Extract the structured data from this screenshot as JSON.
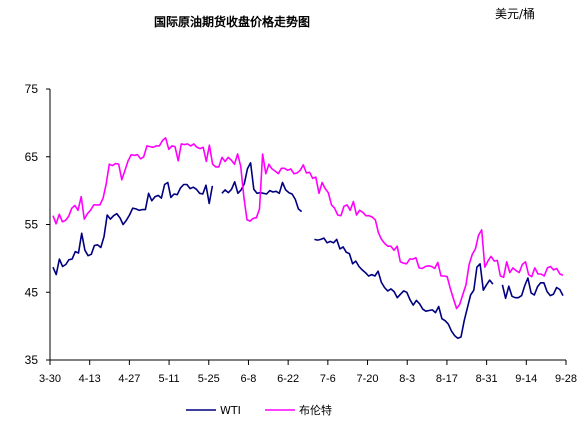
{
  "chart_data": {
    "type": "line",
    "title": "国际原油期货收盘价格走势图",
    "unit_label": "美元/桶",
    "xlabel": "",
    "ylabel": "",
    "ylim": [
      35,
      75
    ],
    "y_ticks": [
      35,
      45,
      55,
      65,
      75
    ],
    "x_tick_labels": [
      "3-30",
      "4-13",
      "4-27",
      "5-11",
      "5-25",
      "6-8",
      "6-22",
      "7-6",
      "7-20",
      "8-3",
      "8-17",
      "8-31",
      "9-14",
      "9-28"
    ],
    "grid": false,
    "legend_position": "bottom",
    "series": [
      {
        "name": "WTI",
        "color": "#000080",
        "values": [
          48.7,
          47.6,
          49.9,
          48.8,
          49.1,
          49.8,
          49.9,
          51.0,
          50.8,
          53.7,
          51.2,
          50.4,
          50.6,
          51.9,
          52.0,
          51.6,
          53.2,
          56.4,
          55.8,
          56.3,
          56.6,
          56.0,
          55.0,
          55.6,
          56.4,
          57.4,
          57.3,
          57.1,
          57.2,
          57.2,
          59.6,
          58.5,
          59.1,
          59.3,
          58.9,
          60.9,
          61.2,
          59.0,
          59.5,
          59.4,
          60.4,
          60.9,
          60.9,
          60.3,
          60.5,
          60.2,
          59.6,
          59.5,
          60.8,
          58.1,
          60.7,
          null,
          null,
          59.6,
          60.1,
          59.7,
          60.2,
          61.3,
          59.6,
          60.1,
          61.0,
          63.2,
          64.1,
          60.2,
          59.6,
          59.7,
          59.6,
          59.5,
          60.0,
          59.8,
          59.9,
          59.6,
          61.2,
          60.1,
          59.7,
          59.5,
          58.7,
          57.3,
          56.9,
          null,
          null,
          null,
          52.8,
          52.7,
          52.8,
          53.0,
          52.3,
          52.5,
          52.3,
          52.8,
          51.4,
          51.7,
          50.9,
          50.7,
          49.2,
          49.6,
          48.8,
          48.3,
          47.9,
          47.4,
          47.6,
          47.4,
          48.1,
          46.5,
          45.7,
          45.2,
          45.5,
          45.1,
          44.2,
          44.7,
          45.2,
          45.0,
          43.9,
          43.1,
          43.8,
          43.3,
          42.5,
          42.2,
          42.3,
          42.4,
          42.0,
          42.9,
          41.1,
          40.8,
          40.3,
          39.3,
          38.6,
          38.2,
          38.4,
          40.8,
          42.7,
          44.6,
          45.3,
          48.7,
          49.2,
          45.3,
          46.1,
          46.8,
          46.2,
          null,
          null,
          46.1,
          44.1,
          45.9,
          44.4,
          44.2,
          44.2,
          44.5,
          46.0,
          47.1,
          44.9,
          44.6,
          45.8,
          46.4,
          46.4,
          45.1,
          44.5,
          44.7,
          45.7,
          45.4,
          44.5
        ]
      },
      {
        "name": "布伦特",
        "color": "#ff00ff",
        "values": [
          56.3,
          55.1,
          56.5,
          55.4,
          55.6,
          56.2,
          57.4,
          57.8,
          57.1,
          59.1,
          55.8,
          56.6,
          57.1,
          57.9,
          57.9,
          57.9,
          58.9,
          61.0,
          63.9,
          63.7,
          64.0,
          63.9,
          61.6,
          63.0,
          64.4,
          65.3,
          65.2,
          65.3,
          64.7,
          65.0,
          66.6,
          66.5,
          66.4,
          66.6,
          66.6,
          67.4,
          67.8,
          66.1,
          66.6,
          66.5,
          64.4,
          66.9,
          66.8,
          66.9,
          66.6,
          66.9,
          66.4,
          66.2,
          66.4,
          64.3,
          66.7,
          63.9,
          63.5,
          63.5,
          64.9,
          64.3,
          64.9,
          64.5,
          63.9,
          65.4,
          63.6,
          59.0,
          55.7,
          55.5,
          55.9,
          56.0,
          57.3,
          65.4,
          62.5,
          63.9,
          63.2,
          62.9,
          62.5,
          63.3,
          63.3,
          63.0,
          63.2,
          62.5,
          62.6,
          63.0,
          63.8,
          62.6,
          62.7,
          61.8,
          62.0,
          59.6,
          61.2,
          60.3,
          59.7,
          57.9,
          57.4,
          56.4,
          56.3,
          57.7,
          57.9,
          57.1,
          58.4,
          56.4,
          57.1,
          56.8,
          56.3,
          56.3,
          56.1,
          55.7,
          53.8,
          52.8,
          52.2,
          51.8,
          51.8,
          51.2,
          51.8,
          49.5,
          49.3,
          49.2,
          49.9,
          49.9,
          50.1,
          48.6,
          48.5,
          48.8,
          48.9,
          48.8,
          48.5,
          49.4,
          47.4,
          47.4,
          47.3,
          45.5,
          44.0,
          42.6,
          43.2,
          44.7,
          46.1,
          49.1,
          50.6,
          51.4,
          53.4,
          54.2,
          48.7,
          49.6,
          50.3,
          49.6,
          49.7,
          47.4,
          47.2,
          49.5,
          47.9,
          48.6,
          48.2,
          47.9,
          49.1,
          49.5,
          47.6,
          47.3,
          48.6,
          47.7,
          47.7,
          47.4,
          48.6,
          48.8,
          48.3,
          48.5,
          47.7,
          47.5
        ]
      }
    ]
  }
}
